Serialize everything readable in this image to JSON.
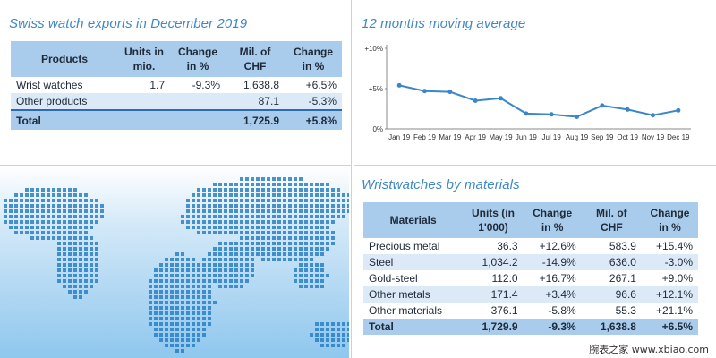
{
  "exports": {
    "title": "Swiss watch exports in December 2019",
    "headers": [
      "Products",
      "Units in mio.",
      "Change in %",
      "Mil. of CHF",
      "Change in %"
    ],
    "rows": [
      {
        "product": "Wrist watches",
        "units": "1.7",
        "change_units": "-9.3%",
        "chf": "1,638.8",
        "change_chf": "+6.5%"
      },
      {
        "product": "Other products",
        "units": "",
        "change_units": "",
        "chf": "87.1",
        "change_chf": "-5.3%"
      }
    ],
    "total": {
      "product": "Total",
      "units": "",
      "change_units": "",
      "chf": "1,725.9",
      "change_chf": "+5.8%"
    }
  },
  "moving_average": {
    "title": "12 months moving average"
  },
  "materials": {
    "title": "Wristwatches by materials",
    "headers": [
      "Materials",
      "Units (in 1'000)",
      "Change in %",
      "Mil. of CHF",
      "Change in %"
    ],
    "rows": [
      {
        "material": "Precious metal",
        "units": "36.3",
        "change_units": "+12.6%",
        "chf": "583.9",
        "change_chf": "+15.4%"
      },
      {
        "material": "Steel",
        "units": "1,034.2",
        "change_units": "-14.9%",
        "chf": "636.0",
        "change_chf": "-3.0%"
      },
      {
        "material": "Gold-steel",
        "units": "112.0",
        "change_units": "+16.7%",
        "chf": "267.1",
        "change_chf": "+9.0%"
      },
      {
        "material": "Other metals",
        "units": "171.4",
        "change_units": "+3.4%",
        "chf": "96.6",
        "change_chf": "+12.1%"
      },
      {
        "material": "Other materials",
        "units": "376.1",
        "change_units": "-5.8%",
        "chf": "55.3",
        "change_chf": "+21.1%"
      }
    ],
    "total": {
      "material": "Total",
      "units": "1,729.9",
      "change_units": "-9.3%",
      "chf": "1,638.8",
      "change_chf": "+6.5%"
    }
  },
  "watermark": "腕表之家 www.xbiao.com",
  "colors": {
    "title_blue": "#3f88c5",
    "header_fill": "#a9cbec",
    "row_shade": "#dceaf8",
    "line": "#3a86c8",
    "map_dot": "#2a7fc4"
  },
  "chart_data": {
    "type": "line",
    "title": "12 months moving average",
    "categories": [
      "Jan 19",
      "Feb 19",
      "Mar 19",
      "Apr 19",
      "May 19",
      "Jun 19",
      "Jul 19",
      "Aug 19",
      "Sep 19",
      "Oct 19",
      "Nov 19",
      "Dec 19"
    ],
    "series": [
      {
        "values": [
          5.4,
          4.7,
          4.6,
          3.5,
          3.8,
          1.9,
          1.8,
          1.5,
          2.9,
          2.4,
          1.7,
          2.3
        ]
      }
    ],
    "yticks": [
      "+10%",
      "+5%",
      "0%"
    ],
    "ylim": [
      0,
      10
    ],
    "grid": false,
    "legend": "none"
  }
}
